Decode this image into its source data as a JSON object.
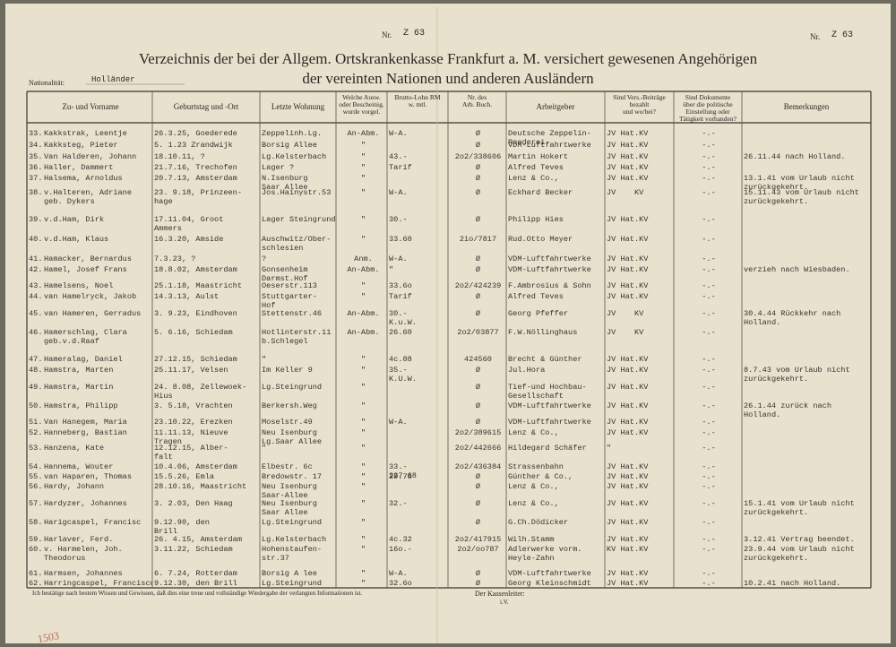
{
  "header": {
    "nr_left_label": "Nr.",
    "nr_left": "Z 63",
    "nr_right_label": "Nr.",
    "nr_right": "Z 63",
    "title_line1": "Verzeichnis der bei der Allgem. Ortskrankenkasse Frankfurt a. M. versichert gewesenen Angehörigen",
    "title_line2": "der vereinten Nationen und anderen Ausländern",
    "nationality_label": "Nationalität:",
    "nationality": "Holländer"
  },
  "columns": [
    "Zu- und Vorname",
    "Geburtstag und -Ort",
    "Letzte Wohnung",
    "Welche Ausw. oder Bescheinig. wurde vorgel.",
    "Brutto-Lohn RM\nw.      mtl.",
    "Nr. des\nArb. Buch.",
    "Arbeitgeber",
    "Sind Vers.-Beiträge\nbezahlt\nund wo/bei?",
    "Sind Dokumente\nüber die politische\nEinstellung oder\nTätigkeit vorhanden?",
    "Bemerkungen"
  ],
  "rows": [
    [
      "33.",
      "Kakkstrak, Leentje",
      "26.3.25, Goederede",
      "Zeppelinh.Lg.",
      "An-Abm.",
      "W-A.",
      "Ø",
      "Deutsche Zeppelin-\nReederei",
      "JV Hat.KV",
      "-.-",
      null
    ],
    [
      "34.",
      "Kakksteg, Pieter",
      "5. 1.23 Zrandwijk",
      "Borsig Allee",
      "\"",
      null,
      "Ø",
      "VDM-Luftfahrtwerke",
      "JV Hat.KV",
      "-.-",
      null
    ],
    [
      "35.",
      "Van Halderen, Johann",
      "18.10.11, ?",
      "Lg.Kelsterbach",
      "\"",
      "43.-",
      "2o2/338606",
      "Martin Hokert",
      "JV Hat.KV",
      "-.-",
      "26.11.44 nach Holland."
    ],
    [
      "36.",
      "Haller, Dammert",
      "21.7.16, Trechofen",
      "Lager ?",
      "\"",
      "Tarif",
      "Ø",
      "Alfred Teves",
      "JV Hat.KV",
      "-.-",
      null
    ],
    [
      "37.",
      "Halsema, Arnoldus",
      "20.7.13, Amsterdam",
      "N.Isenburg\nSaar Allee",
      "\"",
      null,
      "Ø",
      "Lenz & Co.,",
      "JV Hat.KV",
      "-.-",
      "13.1.41 vom Urlaub nicht\nzurückgekehrt."
    ],
    [
      "38.",
      "v.Halteren, Adriane\ngeb. Dykers",
      "23. 9.18, Prinzeen-\nhage",
      "Jos.Hainystr.53",
      "\"",
      "W-A.",
      "Ø",
      "Eckhard Becker",
      "JV    KV",
      "-.-",
      "15.11.43 vom Urlaub nicht\nzurückgekehrt."
    ],
    [
      "39.",
      "v.d.Ham, Dirk",
      "17.11.04, Groot\nAmmers",
      "Lager Steingrund",
      "\"",
      "30.-",
      "Ø",
      "Philipp Hies",
      "JV Hat.KV",
      "-.-",
      null
    ],
    [
      "40.",
      "v.d.Ham, Klaus",
      "16.3.20, Amside",
      "Auschwitz/Ober-\nschlesien",
      "\"",
      "33.60",
      "2io/7817",
      "Rud.Otto Meyer",
      "JV Hat.KV",
      "-.-",
      null
    ],
    [
      "41.",
      "Hamacker, Bernardus",
      "7.3.23, ?",
      "?",
      "Anm.",
      "W-A.",
      "Ø",
      "VDM-Luftfahrtwerke",
      "JV Hat.KV",
      "-.-",
      null
    ],
    [
      "42.",
      "Hamel, Josef Frans",
      "18.8.02, Amsterdam",
      "Gonsenheim\nDarmst.Hof",
      "An-Abm.",
      "\"",
      "Ø",
      "VDM-Luftfahrtwerke",
      "JV Hat.KV",
      "-.-",
      "verzieh nach Wiesbaden."
    ],
    [
      "43.",
      "Hamelsens, Noel",
      "25.1.18, Maastricht",
      "Oeserstr.113",
      "\"",
      "33.6o",
      "2o2/424239",
      "F.Ambrosius & Sohn",
      "JV Hat.KV",
      "-.-",
      null
    ],
    [
      "44.",
      "van Hamelryck, Jakob",
      "14.3.13, Aulst",
      "Stuttgarter-\nHof",
      "\"",
      "Tarif",
      "Ø",
      "Alfred Teves",
      "JV Hat.KV",
      "-.-",
      null
    ],
    [
      "45.",
      "van Hameren, Gerradus",
      "3. 9.23, Eindhoven",
      "Stettenstr.46",
      "An-Abm.",
      "30.-\nK.u.W.",
      "Ø",
      "Georg Pfeffer",
      "JV    KV",
      "-.-",
      "30.4.44 Rückkehr nach\nHolland."
    ],
    [
      "46.",
      "Hamerschlag, Clara\ngeb.v.d.Raaf",
      "5. 6.16, Schiedam",
      "Hotlinterstr.11\nb.Schlegel",
      "An-Abm.",
      "26.60",
      "2o2/03877",
      "F.W.Nöllinghaus",
      "JV    KV",
      "-.-",
      null
    ],
    [
      "47.",
      "Hameralag, Daniel",
      "27.12.15, Schiedam",
      "\"",
      "\"",
      "4c.88",
      "424560",
      "Brecht & Günther",
      "JV Hat.KV",
      "-.-",
      null
    ],
    [
      "48.",
      "Hamstra, Marten",
      "25.11.17, Velsen",
      "Im Keller 9",
      "\"",
      "35.-\nK.U.W.",
      "Ø",
      "Jul.Hora",
      "JV Hat.KV",
      "-.-",
      "8.7.43 vom Urlaub nicht\nzurückgekehrt."
    ],
    [
      "49.",
      "Hamstra, Martin",
      "24. 8.08, Zellewoek-\nHius",
      "Lg.Steingrund",
      "\"",
      null,
      "Ø",
      "Tief-und Hochbau-\nGesellschaft",
      "JV Hat.KV",
      "-.-",
      null
    ],
    [
      "50.",
      "Hamstra, Philipp",
      "3. 5.18, Vrachten",
      "Berkersh.Weg",
      "\"",
      null,
      "Ø",
      "VDM-Luftfahrtwerke",
      "JV Hat.KV",
      "-.-",
      "26.1.44 zurück nach\nHolland."
    ],
    [
      "51.",
      "Van Hanegem, Maria",
      "23.10.22, Erezken",
      "Moselstr.49",
      "\"",
      "W-A.",
      "Ø",
      "VDM-Luftfahrtwerke",
      "JV Hat.KV",
      "-.-",
      null
    ],
    [
      "52.",
      "Hanneberg, Bastian",
      "11.11.13, Nieuve\nTragen",
      "Neu Isenburg\nLg.Saar Allee",
      "\"",
      null,
      "2o2/389615",
      "Lenz & Co.,",
      "JV Hat.KV",
      "-.-",
      null
    ],
    [
      "53.",
      "Hanzena, Kate",
      "12.12.15, Alber-\nfalt",
      "\"",
      "\"",
      null,
      "2o2/442666",
      "Hildegard Schäfer",
      "\"",
      "-.-",
      null
    ],
    [
      "54.",
      "Hannema, Wouter",
      "10.4.06, Amsterdam",
      "Elbestr. 6c",
      "\"",
      "33.-\n227.68",
      "2o2/436384",
      "Strassenbahn",
      "JV Hat.KV",
      "-.-",
      null
    ],
    [
      "55.",
      "van Haparen, Thomas",
      "15.5.26, Emla",
      "Bredowstr. 17",
      "\"",
      "29.76",
      "Ø",
      "Günther & Co.,",
      "JV Hat.KV",
      "-.-",
      null
    ],
    [
      "56.",
      "Hardy, Johann",
      "28.10.16, Maastricht",
      "Neu Isenburg\nSaar-Allee",
      "\"",
      null,
      "Ø",
      "Lenz & Co.,",
      "JV Hat.KV",
      "-.-",
      null
    ],
    [
      "57.",
      "Hardyzer, Johannes",
      "3. 2.03, Den Haag",
      "Neu Isenburg\nSaar Allee",
      "\"",
      "32.-",
      "Ø",
      "Lenz & Co.,",
      "JV Hat.KV",
      "-.-",
      "15.1.41 vom Urlaub nicht\nzurückgekehrt."
    ],
    [
      "58.",
      "Harigcaspel, Francisc",
      "9.12.90, den\nBrill",
      "Lg.Steingrund",
      "\"",
      null,
      "Ø",
      "G.Ch.Dödicker",
      "JV Hat.KV",
      "-.-",
      null
    ],
    [
      "59.",
      "Harlaver, Ferd.",
      "26. 4.15, Amsterdam",
      "Lg.Kelsterbach",
      "\"",
      "4c.32",
      "2o2/417915",
      "Wilh.Stamm",
      "JV Hat.KV",
      "-.-",
      "3.12.41 Vertrag beendet."
    ],
    [
      "60.",
      "v. Harmelen, Joh.\nTheodorus",
      "3.11.22, Schiedam",
      "Hohenstaufen-\nstr.37",
      "\"",
      "16o.-",
      "2o2/oo787",
      "Adlerwerke vorm.\nHeyle-Zahn",
      "KV Hat.KV",
      "-.-",
      "23.9.44 vom Urlaub nicht\nzurückgekehrt."
    ],
    [
      "61.",
      "Harmsen, Johannes",
      "6. 7.24, Rotterdam",
      "Borsig A lee",
      "\"",
      "W-A.",
      "Ø",
      "VDM-Luftfahrtwerke",
      "JV Hat.KV",
      "-.-",
      null
    ],
    [
      "62.",
      "Harringcaspel, Franciscus",
      "9.12.30, den Brill",
      "Lg.Steingrund",
      "\"",
      "32.6o",
      "Ø",
      "Georg Kleinschmidt",
      "JV Hat.KV",
      "-.-",
      "10.2.41 nach Holland."
    ]
  ],
  "footer": {
    "statement": "Ich bestätige nach bestem Wissen und Gewissen, daß dies eine treue und vollständige Wiedergabe der verlangten Informationen ist.",
    "signatory": "Der Kassenleiter:",
    "iv": "i.V.",
    "pencil_note": "1503"
  }
}
